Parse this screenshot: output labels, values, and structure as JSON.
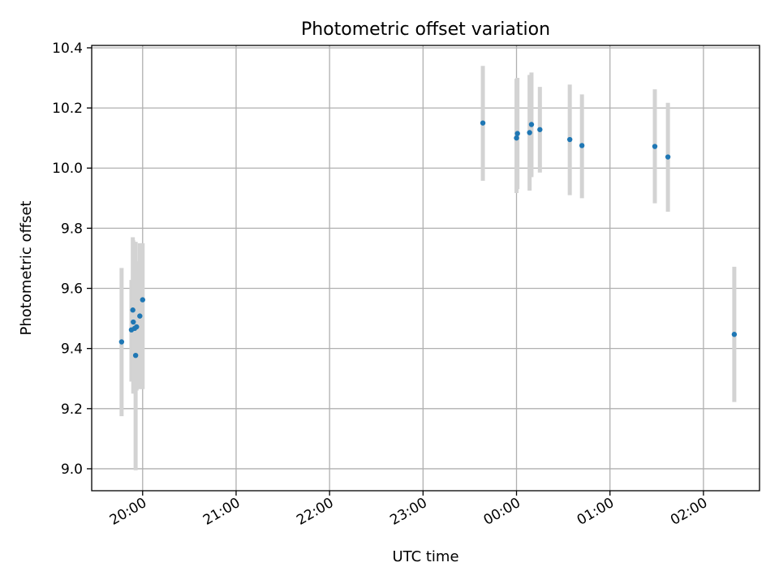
{
  "chart_data": {
    "type": "scatter",
    "title": "Photometric offset variation",
    "xlabel": "UTC time",
    "ylabel": "Photometric offset",
    "x_axis": {
      "unit": "hours since 20:00 UTC",
      "lim": [
        -0.545,
        6.6
      ],
      "ticks": [
        0,
        1,
        2,
        3,
        4,
        5,
        6
      ],
      "tick_labels": [
        "20:00",
        "21:00",
        "22:00",
        "23:00",
        "00:00",
        "01:00",
        "02:00"
      ]
    },
    "y_axis": {
      "lim": [
        8.927,
        10.408
      ],
      "ticks": [
        9.0,
        9.2,
        9.4,
        9.6,
        9.8,
        10.0,
        10.2,
        10.4
      ],
      "tick_labels": [
        "9.0",
        "9.2",
        "9.4",
        "9.6",
        "9.8",
        "10.0",
        "10.2",
        "10.4"
      ]
    },
    "grid": true,
    "marker_color": "#1f77b4",
    "errorbar_color": "#d3d3d3",
    "points": [
      {
        "t": "19:47",
        "x": -0.225,
        "y": 9.422,
        "lo": 9.175,
        "hi": 9.668
      },
      {
        "t": "19:53",
        "x": -0.12,
        "y": 9.462,
        "lo": 9.29,
        "hi": 9.628
      },
      {
        "t": "19:54",
        "x": -0.105,
        "y": 9.528,
        "lo": 9.29,
        "hi": 9.77
      },
      {
        "t": "19:54",
        "x": -0.1,
        "y": 9.488,
        "lo": 9.25,
        "hi": 9.76
      },
      {
        "t": "19:55",
        "x": -0.085,
        "y": 9.467,
        "lo": 9.25,
        "hi": 9.75
      },
      {
        "t": "19:55",
        "x": -0.075,
        "y": 9.377,
        "lo": 8.995,
        "hi": 9.755
      },
      {
        "t": "19:56",
        "x": -0.065,
        "y": 9.472,
        "lo": 9.26,
        "hi": 9.69
      },
      {
        "t": "19:58",
        "x": -0.03,
        "y": 9.508,
        "lo": 9.265,
        "hi": 9.75
      },
      {
        "t": "20:00",
        "x": 0.0,
        "y": 9.562,
        "lo": 9.265,
        "hi": 9.75
      },
      {
        "t": "23:38",
        "x": 3.64,
        "y": 10.15,
        "lo": 9.958,
        "hi": 10.34
      },
      {
        "t": "00:00",
        "x": 4.0,
        "y": 10.1,
        "lo": 9.917,
        "hi": 10.297
      },
      {
        "t": "00:00",
        "x": 4.01,
        "y": 10.115,
        "lo": 9.93,
        "hi": 10.3
      },
      {
        "t": "00:08",
        "x": 4.14,
        "y": 10.118,
        "lo": 9.925,
        "hi": 10.31
      },
      {
        "t": "00:09",
        "x": 4.16,
        "y": 10.145,
        "lo": 9.97,
        "hi": 10.318
      },
      {
        "t": "00:15",
        "x": 4.25,
        "y": 10.128,
        "lo": 9.985,
        "hi": 10.27
      },
      {
        "t": "00:34",
        "x": 4.57,
        "y": 10.095,
        "lo": 9.91,
        "hi": 10.278
      },
      {
        "t": "00:42",
        "x": 4.7,
        "y": 10.075,
        "lo": 9.9,
        "hi": 10.245
      },
      {
        "t": "01:29",
        "x": 5.48,
        "y": 10.072,
        "lo": 9.883,
        "hi": 10.262
      },
      {
        "t": "01:37",
        "x": 5.62,
        "y": 10.037,
        "lo": 9.855,
        "hi": 10.217
      },
      {
        "t": "02:20",
        "x": 6.33,
        "y": 9.447,
        "lo": 9.222,
        "hi": 9.672
      }
    ]
  }
}
